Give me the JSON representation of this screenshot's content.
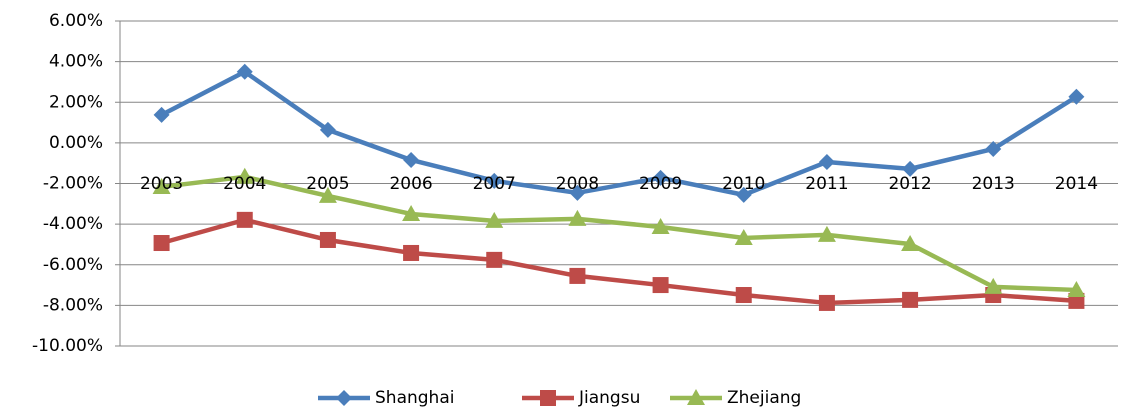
{
  "chart_data": {
    "type": "line",
    "categories": [
      "2003",
      "2004",
      "2005",
      "2006",
      "2007",
      "2008",
      "2009",
      "2010",
      "2011",
      "2012",
      "2013",
      "2014"
    ],
    "series": [
      {
        "name": "Shanghai",
        "color": "#4a7ebb",
        "values": [
          1.38,
          3.5,
          0.64,
          -0.84,
          -1.87,
          -2.46,
          -1.72,
          -2.56,
          -0.94,
          -1.28,
          -0.3,
          2.27
        ]
      },
      {
        "name": "Jiangsu",
        "color": "#be4b48",
        "values": [
          -4.93,
          -3.79,
          -4.78,
          -5.42,
          -5.76,
          -6.55,
          -7.0,
          -7.49,
          -7.88,
          -7.73,
          -7.49,
          -7.78
        ]
      },
      {
        "name": "Zhejiang",
        "color": "#98b954",
        "values": [
          -2.17,
          -1.67,
          -2.61,
          -3.5,
          -3.84,
          -3.74,
          -4.14,
          -4.68,
          -4.53,
          -4.98,
          -7.09,
          -7.24
        ]
      }
    ],
    "ylim": [
      -10,
      6
    ],
    "yticks": [
      {
        "value": -10,
        "label": "-10.00%"
      },
      {
        "value": -8,
        "label": "-8.00%"
      },
      {
        "value": -6,
        "label": "-6.00%"
      },
      {
        "value": -4,
        "label": "-4.00%"
      },
      {
        "value": -2,
        "label": "-2.00%"
      },
      {
        "value": 0,
        "label": "0.00%"
      },
      {
        "value": 2,
        "label": "2.00%"
      },
      {
        "value": 4,
        "label": "4.00%"
      },
      {
        "value": 6,
        "label": "6.00%"
      }
    ],
    "grid": true,
    "legend": "bottom"
  }
}
